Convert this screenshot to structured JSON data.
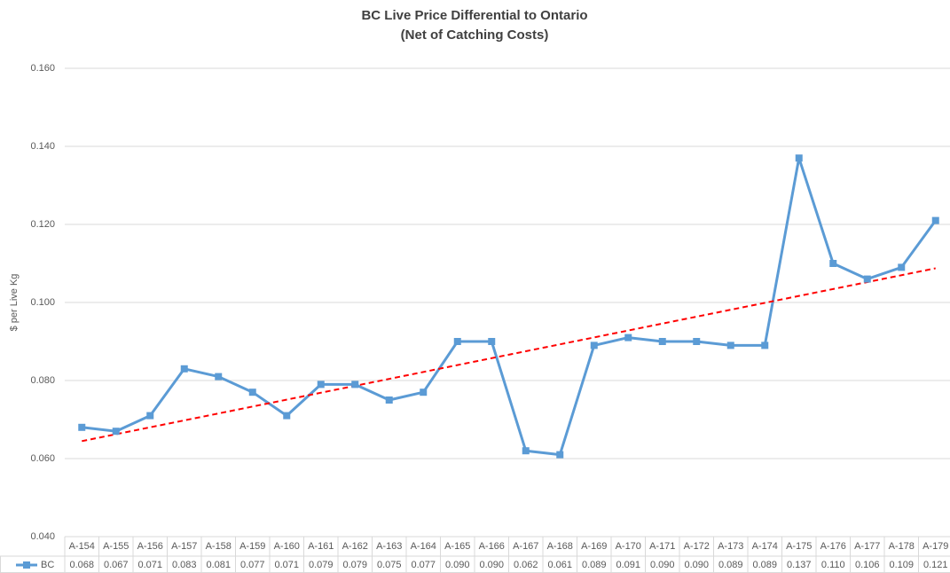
{
  "chart_data": {
    "type": "line",
    "title": "BC Live Price Differential to Ontario",
    "subtitle": "(Net of Catching Costs)",
    "y_label": "$ per Live Kg",
    "categories": [
      "A-154",
      "A-155",
      "A-156",
      "A-157",
      "A-158",
      "A-159",
      "A-160",
      "A-161",
      "A-162",
      "A-163",
      "A-164",
      "A-165",
      "A-166",
      "A-167",
      "A-168",
      "A-169",
      "A-170",
      "A-171",
      "A-172",
      "A-173",
      "A-174",
      "A-175",
      "A-176",
      "A-177",
      "A-178",
      "A-179"
    ],
    "series": [
      {
        "name": "BC",
        "color": "#5b9bd5",
        "values": [
          0.068,
          0.067,
          0.071,
          0.083,
          0.081,
          0.077,
          0.071,
          0.079,
          0.079,
          0.075,
          0.077,
          0.09,
          0.09,
          0.062,
          0.061,
          0.089,
          0.091,
          0.09,
          0.09,
          0.089,
          0.089,
          0.137,
          0.11,
          0.106,
          0.109,
          0.121
        ],
        "value_labels": [
          "0.068",
          "0.067",
          "0.071",
          "0.083",
          "0.081",
          "0.077",
          "0.071",
          "0.079",
          "0.079",
          "0.075",
          "0.077",
          "0.090",
          "0.090",
          "0.062",
          "0.061",
          "0.089",
          "0.091",
          "0.090",
          "0.090",
          "0.089",
          "0.089",
          "0.137",
          "0.110",
          "0.106",
          "0.109",
          "0.121"
        ]
      }
    ],
    "trendline": {
      "kind": "linear",
      "color": "#ff0000"
    },
    "ylim": [
      0.04,
      0.16
    ],
    "yticks": [
      {
        "value": 0.04,
        "label": "0.040"
      },
      {
        "value": 0.06,
        "label": "0.060"
      },
      {
        "value": 0.08,
        "label": "0.080"
      },
      {
        "value": 0.1,
        "label": "0.100"
      },
      {
        "value": 0.12,
        "label": "0.120"
      },
      {
        "value": 0.14,
        "label": "0.140"
      },
      {
        "value": 0.16,
        "label": "0.160"
      }
    ],
    "grid": true
  }
}
